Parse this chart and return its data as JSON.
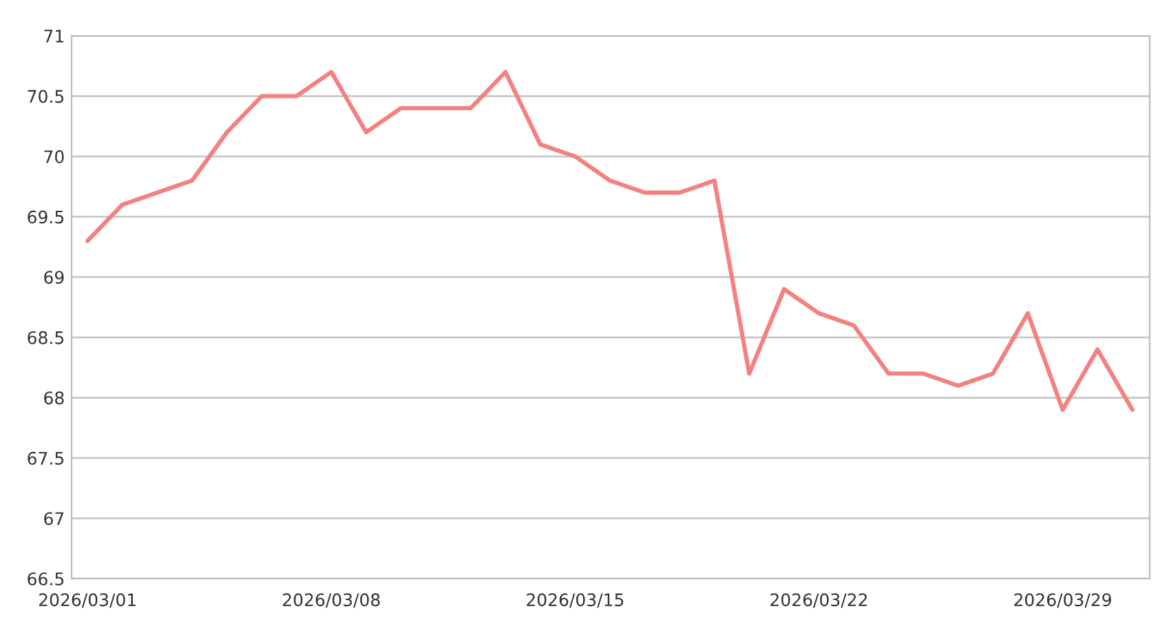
{
  "chart_data": {
    "type": "line",
    "x": [
      "2026-03-01",
      "2026-03-02",
      "2026-03-03",
      "2026-03-04",
      "2026-03-05",
      "2026-03-06",
      "2026-03-07",
      "2026-03-08",
      "2026-03-09",
      "2026-03-10",
      "2026-03-11",
      "2026-03-12",
      "2026-03-13",
      "2026-03-14",
      "2026-03-15",
      "2026-03-16",
      "2026-03-17",
      "2026-03-18",
      "2026-03-19",
      "2026-03-20",
      "2026-03-21",
      "2026-03-22",
      "2026-03-23",
      "2026-03-24",
      "2026-03-25",
      "2026-03-26",
      "2026-03-27",
      "2026-03-28",
      "2026-03-29",
      "2026-03-30",
      "2026-03-31"
    ],
    "series": [
      {
        "color": "#f4817f",
        "values": [
          69.3,
          69.6,
          69.7,
          69.8,
          70.2,
          70.5,
          70.5,
          70.7,
          70.2,
          70.4,
          70.4,
          70.4,
          70.7,
          70.1,
          70.0,
          69.8,
          69.7,
          69.7,
          69.8,
          68.2,
          68.9,
          68.7,
          68.6,
          68.2,
          68.2,
          68.1,
          68.2,
          68.7,
          67.9,
          68.4,
          67.9
        ]
      }
    ],
    "xlim": [
      "2026-02-28T13:00",
      "2026-03-31T12:00"
    ],
    "xticks": [
      {
        "value": "2026-03-01",
        "label": "2026/03/01"
      },
      {
        "value": "2026-03-08",
        "label": "2026/03/08"
      },
      {
        "value": "2026-03-15",
        "label": "2026/03/15"
      },
      {
        "value": "2026-03-22",
        "label": "2026/03/22"
      },
      {
        "value": "2026-03-29",
        "label": "2026/03/29"
      }
    ],
    "ylim": [
      66.5,
      71
    ],
    "yticks": [
      {
        "value": 66.5,
        "label": "66.5"
      },
      {
        "value": 67,
        "label": "67"
      },
      {
        "value": 67.5,
        "label": "67.5"
      },
      {
        "value": 68,
        "label": "68"
      },
      {
        "value": 68.5,
        "label": "68.5"
      },
      {
        "value": 69,
        "label": "69"
      },
      {
        "value": 69.5,
        "label": "69.5"
      },
      {
        "value": 70,
        "label": "70"
      },
      {
        "value": 70.5,
        "label": "70.5"
      },
      {
        "value": 71,
        "label": "71"
      }
    ],
    "grid": "y",
    "marker": "none",
    "line_style": "solid"
  }
}
